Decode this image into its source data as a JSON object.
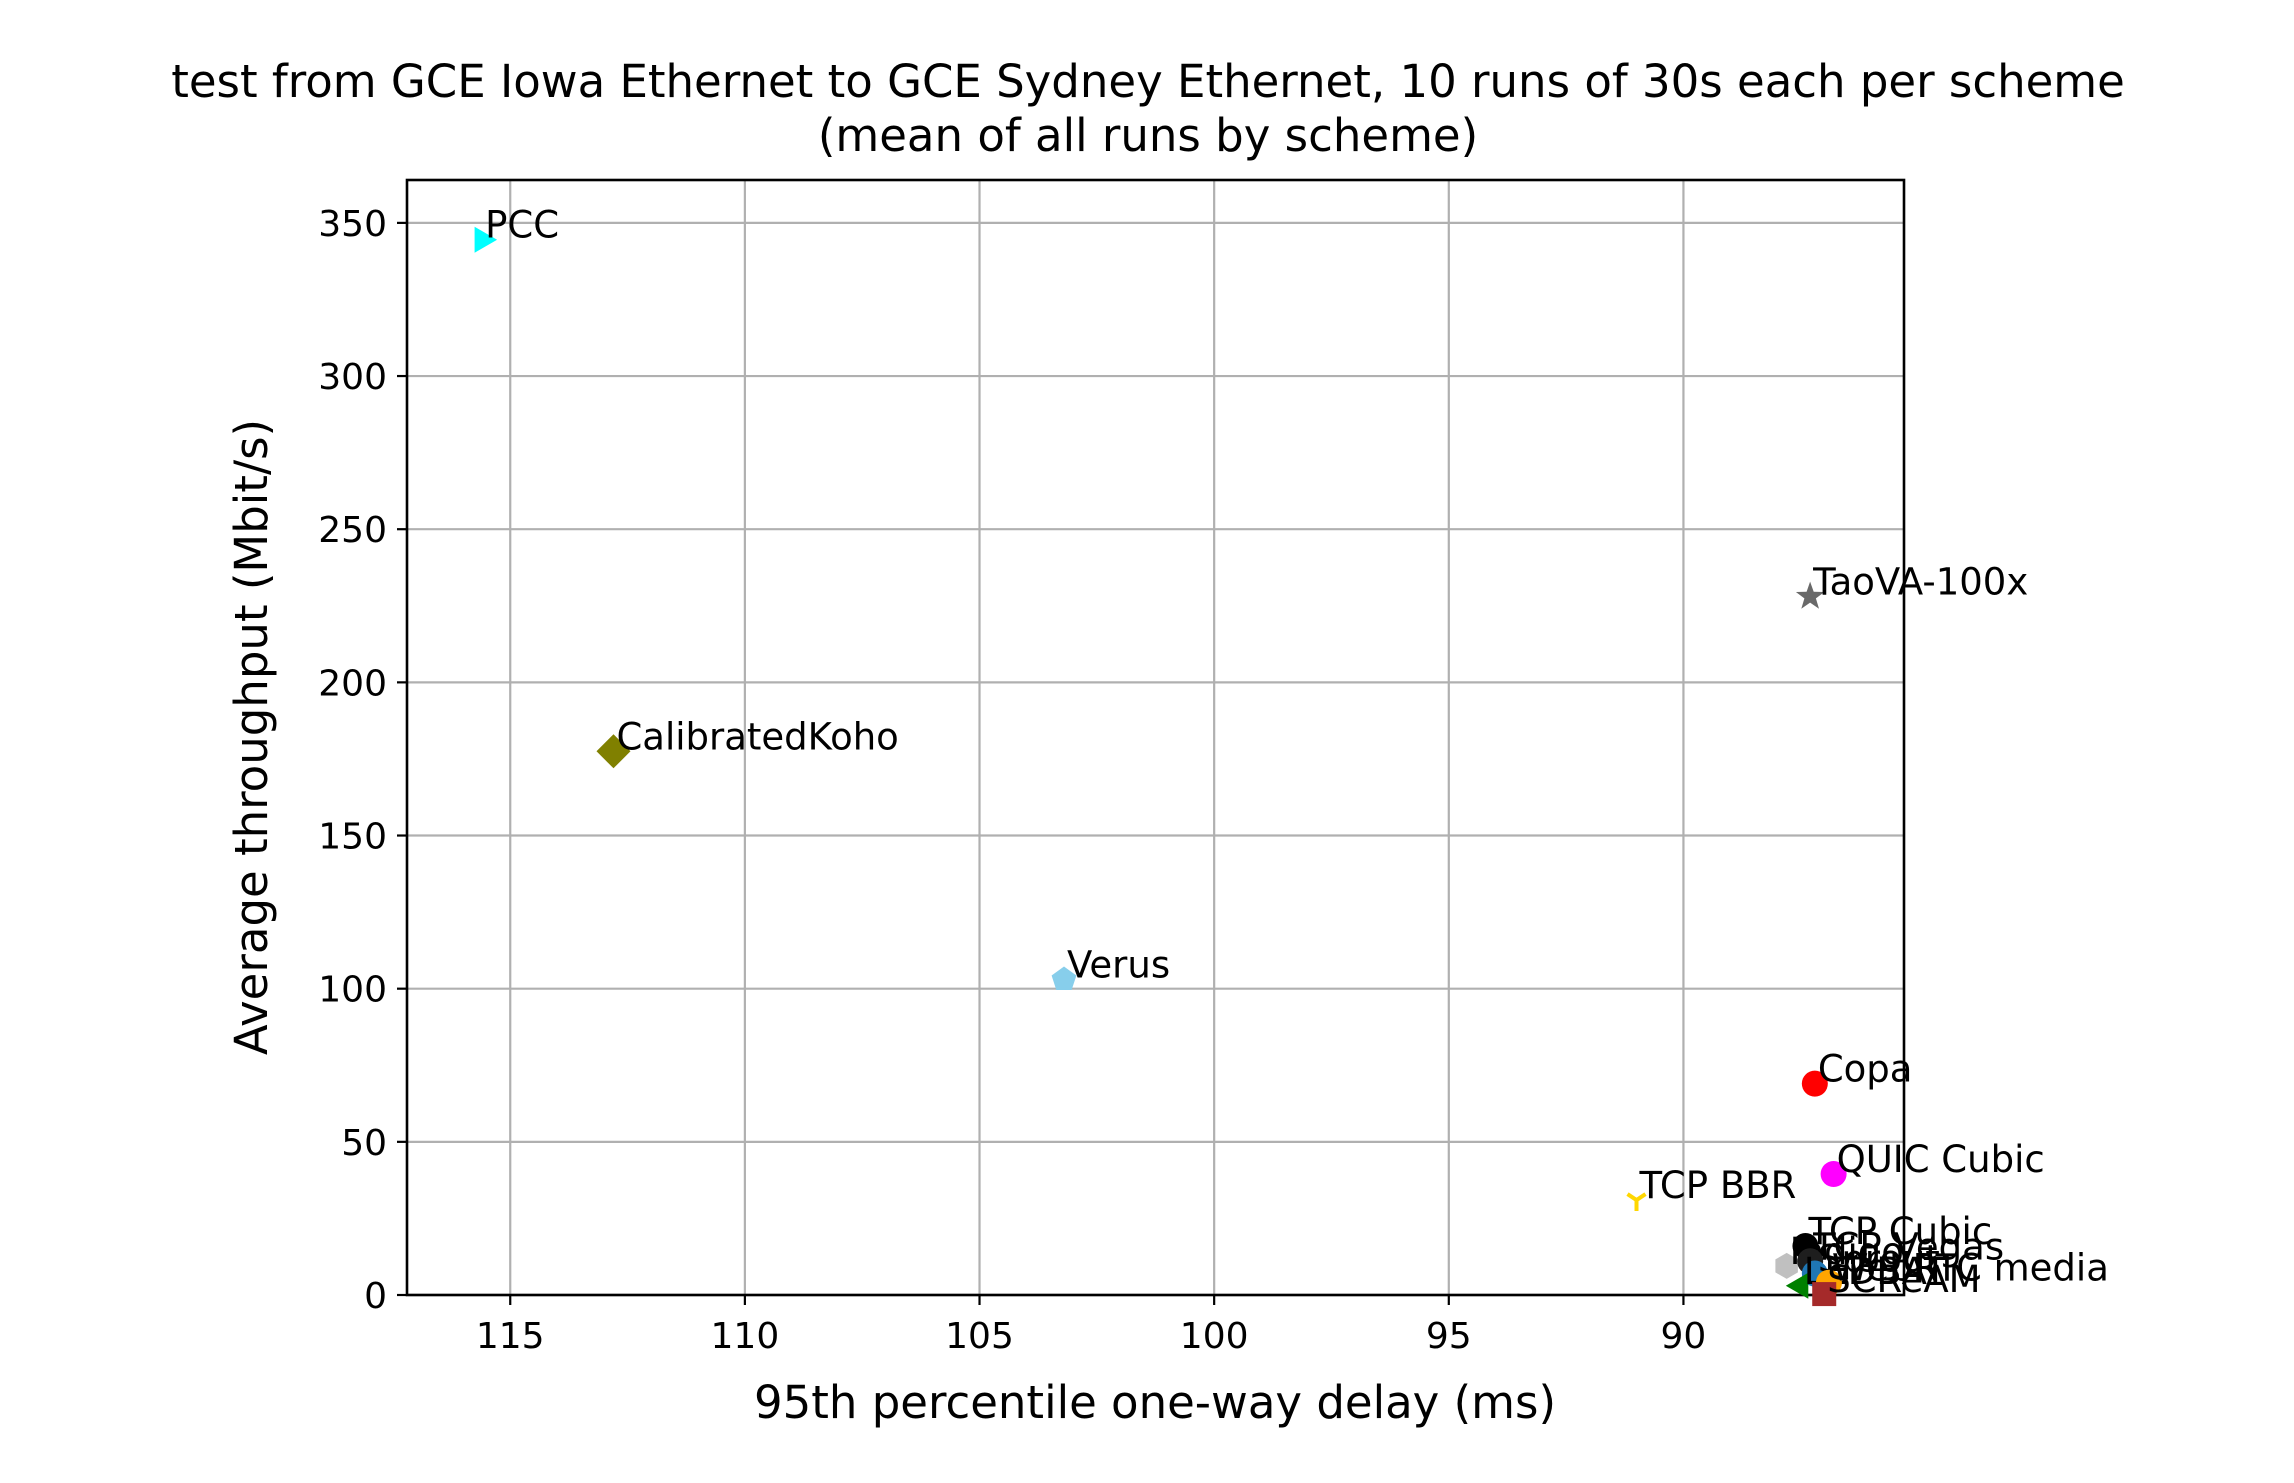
{
  "chart_data": {
    "type": "scatter",
    "title": "test from GCE Iowa Ethernet to GCE Sydney Ethernet, 10 runs of 30s each per scheme",
    "subtitle": "(mean of all runs by scheme)",
    "xlabel": "95th percentile one-way delay (ms)",
    "ylabel": "Average throughput (Mbit/s)",
    "x_inverted": true,
    "xlim": [
      117.2,
      85.3
    ],
    "ylim": [
      0,
      364
    ],
    "x_ticks": [
      115,
      110,
      105,
      100,
      95,
      90
    ],
    "y_ticks": [
      0,
      50,
      100,
      150,
      200,
      250,
      300,
      350
    ],
    "grid": true,
    "series": [
      {
        "name": "PCC",
        "x": 115.6,
        "y": 344.5,
        "color": "#00ffff",
        "marker": "triangle-right"
      },
      {
        "name": "CalibratedKoho",
        "x": 112.8,
        "y": 177.5,
        "color": "#808000",
        "marker": "diamond"
      },
      {
        "name": "Verus",
        "x": 103.2,
        "y": 103.0,
        "color": "#87ceeb",
        "marker": "pentagon"
      },
      {
        "name": "TaoVA-100x",
        "x": 87.3,
        "y": 228.0,
        "color": "#696969",
        "marker": "star"
      },
      {
        "name": "Copa",
        "x": 87.2,
        "y": 69.0,
        "color": "#ff0000",
        "marker": "circle"
      },
      {
        "name": "QUIC Cubic",
        "x": 86.8,
        "y": 39.5,
        "color": "#ff00ff",
        "marker": "circle"
      },
      {
        "name": "TCP BBR",
        "x": 91.0,
        "y": 31.0,
        "color": "#ffd700",
        "marker": "tri-down"
      },
      {
        "name": "TCP Cubic",
        "x": 87.4,
        "y": 16.0,
        "color": "#000000",
        "marker": "circle"
      },
      {
        "name": "Indigo",
        "x": 87.8,
        "y": 9.5,
        "color": "#c0c0c0",
        "marker": "hexagon"
      },
      {
        "name": "TCP Vegas",
        "x": 87.3,
        "y": 11.0,
        "color": "#1e1e1e",
        "marker": "circle"
      },
      {
        "name": "Sprout",
        "x": 87.2,
        "y": 7.0,
        "color": "#1f77b4",
        "marker": "circle"
      },
      {
        "name": "LEDBAT",
        "x": 87.5,
        "y": 3.0,
        "color": "#008000",
        "marker": "triangle-left"
      },
      {
        "name": "WebRTC media",
        "x": 86.9,
        "y": 4.0,
        "color": "#ffa500",
        "marker": "circle"
      },
      {
        "name": "SCReAM",
        "x": 87.0,
        "y": 0.3,
        "color": "#a52a2a",
        "marker": "square"
      }
    ]
  }
}
